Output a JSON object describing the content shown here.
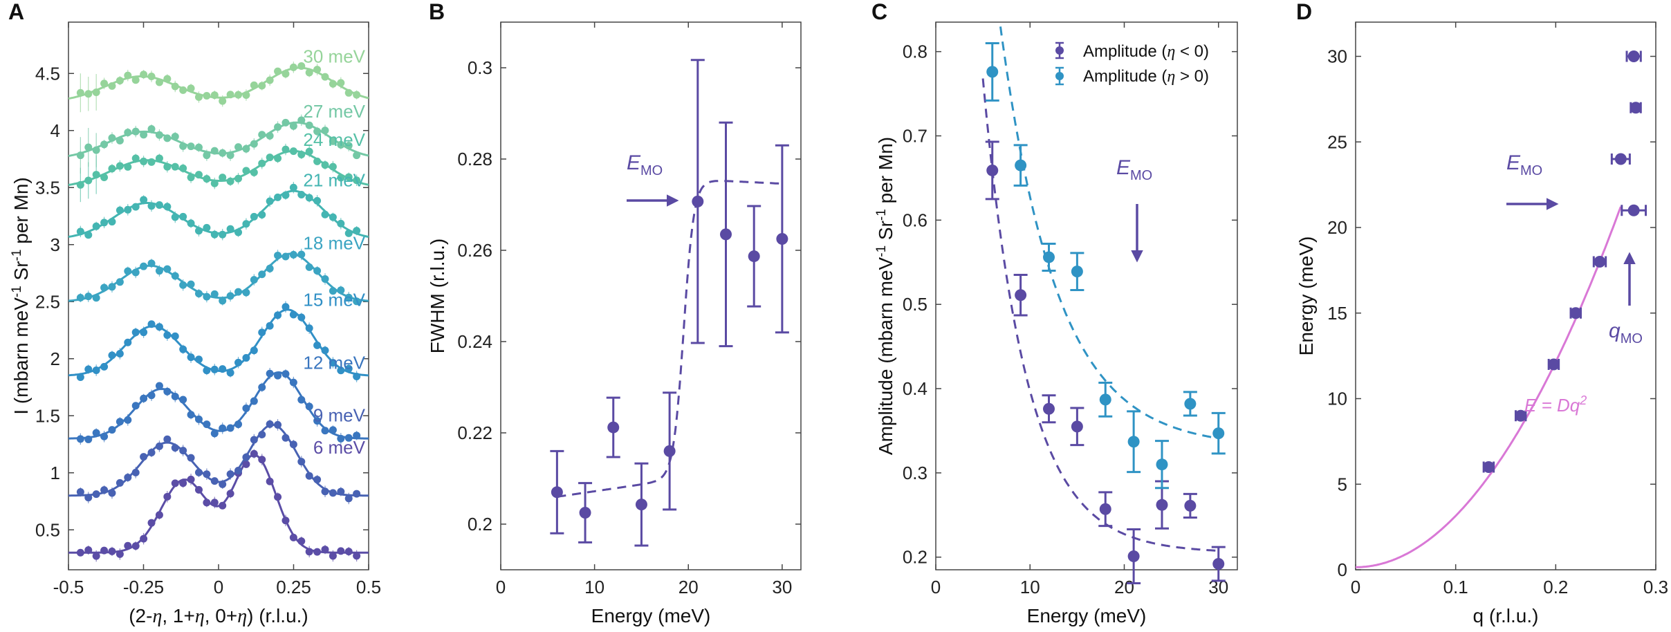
{
  "colors": {
    "purple": "#5a4aa3",
    "blue": "#2f93c4",
    "pink": "#d978d6",
    "axis": "#444444",
    "energy_colors": [
      "#5b4da6",
      "#4862b3",
      "#3a76bf",
      "#3190c6",
      "#3ba4c2",
      "#44b5b2",
      "#55c0a6",
      "#74c8a5",
      "#96d49a"
    ]
  },
  "panels": {
    "A": {
      "letter": "A",
      "ylabel_main": "I (mbarn meV",
      "ylabel_sup1": "-1",
      "ylabel_mid": " Sr",
      "ylabel_sup2": "-1",
      "ylabel_end": " per Mn)",
      "xlabel_parts": [
        "(2-",
        "η",
        ", 1+",
        "η",
        ", 0+",
        "η",
        ") (r.l.u.)"
      ],
      "xticks": [
        "-0.5",
        "-0.25",
        "0",
        "0.25",
        "0.5"
      ],
      "yticks": [
        "0.5",
        "1",
        "1.5",
        "2",
        "2.5",
        "3",
        "3.5",
        "4",
        "4.5"
      ],
      "curve_labels": [
        "6 meV",
        "9 meV",
        "12 meV",
        "15 meV",
        "18 meV",
        "21 meV",
        "24 meV",
        "27 meV",
        "30 meV"
      ]
    },
    "B": {
      "letter": "B",
      "ylabel": "FWHM (r.l.u.)",
      "xlabel": "Energy (meV)",
      "xticks": [
        "0",
        "10",
        "20",
        "30"
      ],
      "yticks": [
        "0.2",
        "0.22",
        "0.24",
        "0.26",
        "0.28",
        "0.3"
      ],
      "annotation_main": "E",
      "annotation_sub": "MO"
    },
    "C": {
      "letter": "C",
      "ylabel_main": "Amplitude (mbarn meV",
      "ylabel_sup1": "-1",
      "ylabel_mid": " Sr",
      "ylabel_sup2": "-1",
      "ylabel_end": " per Mn)",
      "xlabel": "Energy (meV)",
      "xticks": [
        "0",
        "10",
        "20",
        "30"
      ],
      "yticks": [
        "0.2",
        "0.3",
        "0.4",
        "0.5",
        "0.6",
        "0.7",
        "0.8"
      ],
      "legend": [
        {
          "prefix": "Amplitude (",
          "sym": "η",
          "suffix": " < 0)"
        },
        {
          "prefix": "Amplitude (",
          "sym": "η",
          "suffix": " > 0)"
        }
      ],
      "annotation_main": "E",
      "annotation_sub": "MO"
    },
    "D": {
      "letter": "D",
      "ylabel": "Energy (meV)",
      "xlabel": "q (r.l.u.)",
      "xticks": [
        "0",
        "0.1",
        "0.2",
        "0.3"
      ],
      "yticks": [
        "0",
        "5",
        "10",
        "15",
        "20",
        "25",
        "30"
      ],
      "annotation_e_main": "E",
      "annotation_e_sub": "MO",
      "annotation_q_main": "q",
      "annotation_q_sub": "MO",
      "fit_label_main": "E = Dq",
      "fit_label_sup": "2"
    }
  },
  "chart_data": [
    {
      "panel": "A",
      "type": "scatter",
      "xlabel": "(2-η, 1+η, 0+η) (r.l.u.)",
      "ylabel": "I (mbarn meV^-1 Sr^-1 per Mn)",
      "xlim": [
        -0.5,
        0.5
      ],
      "ylim": [
        0.15,
        4.95
      ],
      "series": [
        {
          "name": "6 meV",
          "offset": 0.25,
          "base": 0.05,
          "amp": 0.85,
          "center": 0.12,
          "width": 0.07
        },
        {
          "name": "9 meV",
          "offset": 0.75,
          "base": 0.05,
          "amp": 0.62,
          "center": 0.18,
          "width": 0.08
        },
        {
          "name": "12 meV",
          "offset": 1.25,
          "base": 0.05,
          "amp": 0.58,
          "center": 0.2,
          "width": 0.08
        },
        {
          "name": "15 meV",
          "offset": 1.8,
          "base": 0.05,
          "amp": 0.58,
          "center": 0.23,
          "width": 0.085
        },
        {
          "name": "18 meV",
          "offset": 2.45,
          "base": 0.05,
          "amp": 0.42,
          "center": 0.24,
          "width": 0.09
        },
        {
          "name": "21 meV",
          "offset": 3.0,
          "base": 0.05,
          "amp": 0.42,
          "center": 0.25,
          "width": 0.1
        },
        {
          "name": "24 meV",
          "offset": 3.45,
          "base": 0.05,
          "amp": 0.32,
          "center": 0.25,
          "width": 0.11
        },
        {
          "name": "27 meV",
          "offset": 3.7,
          "base": 0.05,
          "amp": 0.32,
          "center": 0.26,
          "width": 0.11
        },
        {
          "name": "30 meV",
          "offset": 4.2,
          "base": 0.05,
          "amp": 0.3,
          "center": 0.27,
          "width": 0.11
        }
      ]
    },
    {
      "panel": "B",
      "type": "scatter",
      "xlabel": "Energy (meV)",
      "ylabel": "FWHM (r.l.u.)",
      "xlim": [
        0,
        32
      ],
      "ylim": [
        0.19,
        0.31
      ],
      "x": [
        6,
        9,
        12,
        15,
        18,
        21,
        24,
        27,
        30
      ],
      "y": [
        0.207,
        0.2025,
        0.2212,
        0.2043,
        0.216,
        0.2707,
        0.2635,
        0.2587,
        0.2625
      ],
      "err": [
        0.009,
        0.0065,
        0.0065,
        0.009,
        0.0128,
        0.031,
        0.0245,
        0.011,
        0.0205
      ],
      "fit": {
        "type": "sigmoid",
        "low": 0.206,
        "high": 0.271,
        "center": 19.5,
        "scale": 0.55
      }
    },
    {
      "panel": "C",
      "type": "scatter",
      "xlabel": "Energy (meV)",
      "ylabel": "Amplitude (mbarn meV^-1 Sr^-1 per Mn)",
      "xlim": [
        0,
        32
      ],
      "ylim": [
        0.185,
        0.835
      ],
      "series": [
        {
          "name": "Amplitude (η < 0)",
          "x": [
            6,
            9,
            12,
            15,
            18,
            21,
            24,
            27,
            30
          ],
          "y": [
            0.659,
            0.511,
            0.376,
            0.355,
            0.257,
            0.201,
            0.262,
            0.261,
            0.192
          ],
          "err": [
            0.034,
            0.024,
            0.016,
            0.022,
            0.02,
            0.032,
            0.028,
            0.014,
            0.02
          ],
          "fit": {
            "type": "exp",
            "base": 0.205,
            "A": 1.65,
            "k": 0.215
          }
        },
        {
          "name": "Amplitude (η > 0)",
          "x": [
            6,
            9,
            12,
            15,
            18,
            21,
            24,
            27,
            30
          ],
          "y": [
            0.776,
            0.665,
            0.556,
            0.539,
            0.387,
            0.337,
            0.31,
            0.382,
            0.347
          ],
          "err": [
            0.034,
            0.024,
            0.016,
            0.022,
            0.02,
            0.036,
            0.028,
            0.014,
            0.024
          ],
          "fit": {
            "type": "exp",
            "base": 0.33,
            "A": 1.55,
            "k": 0.165
          }
        }
      ]
    },
    {
      "panel": "D",
      "type": "scatter",
      "xlabel": "q (r.l.u.)",
      "ylabel": "Energy (meV)",
      "xlim": [
        0,
        0.3
      ],
      "ylim": [
        0,
        32
      ],
      "x": [
        0.133,
        0.165,
        0.198,
        0.22,
        0.244,
        0.278,
        0.265,
        0.28,
        0.278
      ],
      "y": [
        6,
        9,
        12,
        15,
        18,
        21,
        24,
        27,
        30
      ],
      "xerr": [
        0.005,
        0.005,
        0.005,
        0.005,
        0.006,
        0.012,
        0.009,
        0.005,
        0.007
      ],
      "fit": {
        "type": "power",
        "label": "E = Dq^2",
        "D": 300,
        "x_max": 0.265
      }
    }
  ]
}
